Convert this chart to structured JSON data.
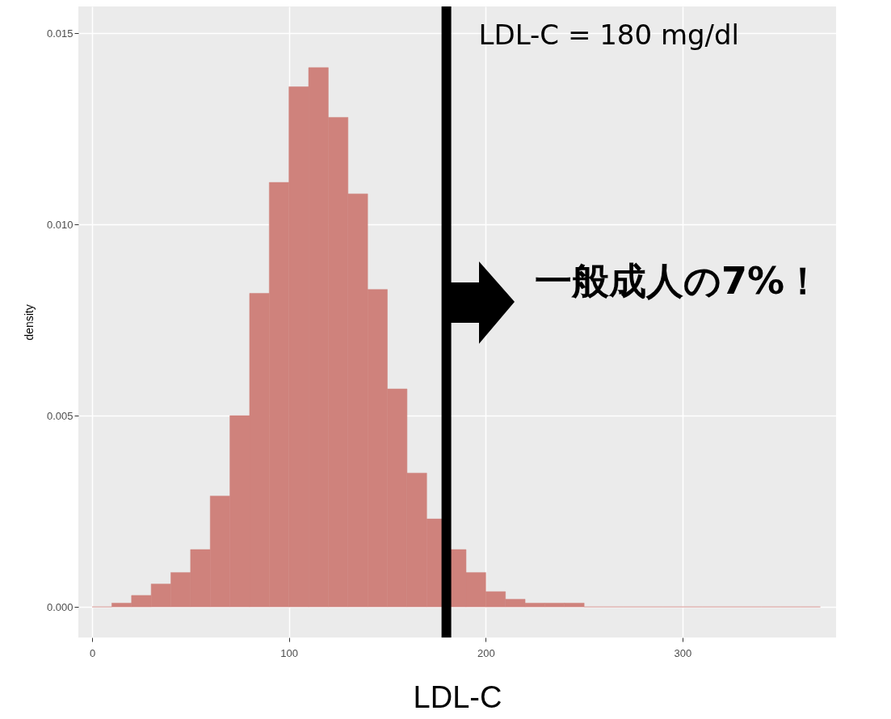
{
  "chart_data": {
    "type": "histogram",
    "xlabel": "LDL-C",
    "ylabel": "density",
    "bins": [
      0,
      10,
      20,
      30,
      40,
      50,
      60,
      70,
      80,
      90,
      100,
      110,
      120,
      130,
      140,
      150,
      160,
      170,
      180,
      190,
      200,
      210,
      220,
      230,
      240,
      250,
      260,
      270,
      280,
      290,
      300,
      310,
      320,
      330,
      340,
      350,
      360,
      370
    ],
    "values": [
      0,
      0.0001,
      0.0003,
      0.0006,
      0.0009,
      0.0015,
      0.0029,
      0.005,
      0.0082,
      0.0111,
      0.0136,
      0.0141,
      0.0128,
      0.0108,
      0.0083,
      0.0057,
      0.0035,
      0.0023,
      0.0015,
      0.0009,
      0.0004,
      0.0002,
      0.0001,
      0.0001,
      0.0001,
      0,
      0,
      0,
      0,
      0,
      0,
      0,
      0,
      0,
      0,
      0,
      0
    ],
    "color": "#cf827c",
    "xlim": [
      -7,
      378
    ],
    "xticks": [
      0,
      100,
      200,
      300
    ],
    "ylim": [
      -0.0008,
      0.0157
    ],
    "yticks": [
      {
        "value": 0,
        "label": "0.000"
      },
      {
        "value": 0.005,
        "label": "0.005"
      },
      {
        "value": 0.01,
        "label": "0.010"
      },
      {
        "value": 0.015,
        "label": "0.015"
      }
    ],
    "grid": true,
    "ref_lines": [
      {
        "axis": "x",
        "value": 180,
        "label": "LDL-C = 180 mg/dl",
        "color": "#000000"
      }
    ],
    "annotations": [
      "一般成人の7%！"
    ]
  }
}
